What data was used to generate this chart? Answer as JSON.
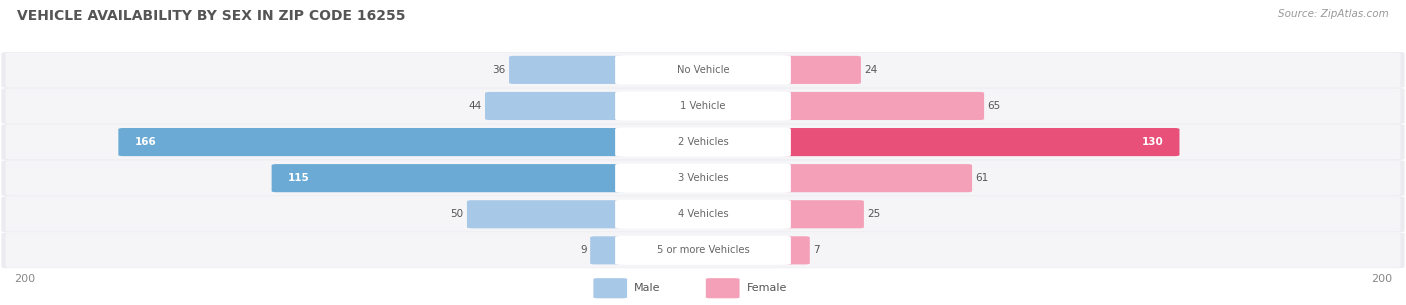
{
  "title": "VEHICLE AVAILABILITY BY SEX IN ZIP CODE 16255",
  "source": "Source: ZipAtlas.com",
  "categories": [
    "No Vehicle",
    "1 Vehicle",
    "2 Vehicles",
    "3 Vehicles",
    "4 Vehicles",
    "5 or more Vehicles"
  ],
  "male_values": [
    36,
    44,
    166,
    115,
    50,
    9
  ],
  "female_values": [
    24,
    65,
    130,
    61,
    25,
    7
  ],
  "male_color_light": "#a8c8e8",
  "male_color_dark": "#6aaad4",
  "female_color_light": "#f4a0b8",
  "female_color_dark": "#e8507a",
  "male_label_threshold": 100,
  "female_label_threshold": 100,
  "axis_max": 200,
  "bg_color": "#ffffff",
  "row_bg_color": "#ebebf0",
  "row_bg_inner": "#f5f5f8",
  "title_color": "#555555",
  "source_color": "#999999",
  "value_color_dark": "#555555",
  "value_color_white": "#ffffff",
  "center_label_color": "#666666",
  "legend_label_color": "#555555",
  "axis_label_color": "#888888"
}
